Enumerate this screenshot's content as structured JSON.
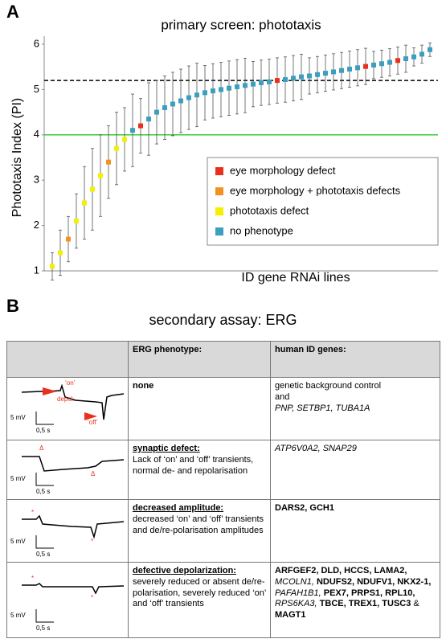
{
  "panel_a": {
    "letter": "A"
  },
  "chart_data": {
    "type": "scatter",
    "title": "primary screen: phototaxis",
    "xlabel": "ID gene RNAi lines",
    "ylabel": "Phototaxis Index (PI)",
    "xlim": [
      0,
      49
    ],
    "ylim": [
      1,
      6
    ],
    "yticks": [
      1,
      2,
      3,
      4,
      5,
      6
    ],
    "grid": false,
    "legend": "lower right",
    "reference_lines": [
      {
        "value": 5.2,
        "color": "#000000",
        "style": "dashed"
      },
      {
        "value": 4,
        "color": "#33cc33",
        "style": "solid"
      }
    ],
    "series": [
      {
        "name": "eye morphology defect",
        "color": "#e8301c",
        "x": [
          12,
          29,
          40,
          44
        ],
        "values": [
          4.2,
          5.2,
          5.51,
          5.64
        ],
        "errors": [
          0.6,
          0.5,
          0.4,
          0.3
        ]
      },
      {
        "name": "eye morphology + phototaxis defects",
        "color": "#f39220",
        "x": [
          3,
          8
        ],
        "values": [
          1.7,
          3.4
        ],
        "errors": [
          0.5,
          0.8
        ]
      },
      {
        "name": "phototaxis defect",
        "color": "#f5f000",
        "x": [
          1,
          2,
          4,
          5,
          6,
          7,
          9,
          10
        ],
        "values": [
          1.1,
          1.4,
          2.1,
          2.5,
          2.8,
          3.1,
          3.7,
          3.9
        ],
        "errors": [
          0.3,
          0.5,
          0.6,
          0.8,
          0.9,
          0.9,
          0.8,
          0.7
        ]
      },
      {
        "name": "no phenotype",
        "color": "#3b9fc0",
        "x": [
          11,
          13,
          14,
          15,
          16,
          17,
          18,
          19,
          20,
          21,
          22,
          23,
          24,
          25,
          26,
          27,
          28,
          30,
          31,
          32,
          33,
          34,
          35,
          36,
          37,
          38,
          39,
          41,
          42,
          43,
          45,
          46,
          47,
          48
        ],
        "values": [
          4.1,
          4.35,
          4.5,
          4.6,
          4.68,
          4.75,
          4.82,
          4.88,
          4.93,
          4.97,
          5.0,
          5.03,
          5.06,
          5.09,
          5.12,
          5.15,
          5.17,
          5.22,
          5.25,
          5.28,
          5.3,
          5.33,
          5.36,
          5.39,
          5.42,
          5.45,
          5.48,
          5.54,
          5.57,
          5.6,
          5.68,
          5.72,
          5.78,
          5.88
        ],
        "errors": [
          0.8,
          0.8,
          0.7,
          0.7,
          0.7,
          0.7,
          0.7,
          0.7,
          0.6,
          0.6,
          0.6,
          0.6,
          0.6,
          0.6,
          0.5,
          0.5,
          0.5,
          0.5,
          0.5,
          0.5,
          0.4,
          0.4,
          0.4,
          0.4,
          0.4,
          0.4,
          0.4,
          0.3,
          0.3,
          0.3,
          0.3,
          0.2,
          0.2,
          0.15
        ]
      }
    ]
  },
  "panel_b": {
    "letter": "B",
    "title": "secondary assay: ERG"
  },
  "table": {
    "headers": [
      "ERG phenotype:",
      "human ID genes:"
    ],
    "rows": [
      {
        "trace_labels": [
          "‘on’",
          "depol.",
          "‘off’",
          "5 mV",
          "0,5 s"
        ],
        "phenotype": "none",
        "description": "",
        "genes": [
          {
            "text": "genetic background control",
            "style": "normal"
          },
          {
            "text": "and",
            "style": "normal"
          },
          {
            "text": "PNP, SETBP1, TUBA1A",
            "style": "italic"
          }
        ]
      },
      {
        "trace_labels": [
          "Δ",
          "Δ",
          "5 mV",
          "0,5 s"
        ],
        "phenotype": "synaptic defect:",
        "description": "Lack of ‘on’ and ‘off’ transients, normal de- and repolarisation",
        "genes": [
          {
            "text": "ATP6V0A2, SNAP29",
            "style": "italic"
          }
        ]
      },
      {
        "trace_labels": [
          "*",
          "*",
          "5 mV",
          "0,5 s"
        ],
        "phenotype": "decreased amplitude:",
        "description": "decreased ‘on’ and ‘off’ transients and de/re-polarisation amplitudes",
        "genes": [
          {
            "text": "DARS2, GCH1",
            "style": "bold"
          }
        ]
      },
      {
        "trace_labels": [
          "*",
          "*",
          "5 mV",
          "0,5 s"
        ],
        "phenotype": "defective depolarization:",
        "description": "severely reduced or absent de/re-polarisation, severely reduced ‘on’ and ‘off’ transients",
        "genes": [
          {
            "text": "ARFGEF2, DLD, HCCS, LAMA2,",
            "style": "bold"
          },
          {
            "text": "MCOLN1,",
            "style": "italic"
          },
          {
            "text": "NDUFS2, NDUFV1, NKX2-1,",
            "style": "bold"
          },
          {
            "text": "PAFAH1B1,",
            "style": "italic"
          },
          {
            "text": "PEX7, PRPS1, RPL10,",
            "style": "bold"
          },
          {
            "text": "RPS6KA3,",
            "style": "italic"
          },
          {
            "text": "TBCE, TREX1, TUSC3",
            "style": "bold"
          },
          {
            "text": "&",
            "style": "normal"
          },
          {
            "text": "MAGT1",
            "style": "bold"
          }
        ]
      }
    ]
  }
}
